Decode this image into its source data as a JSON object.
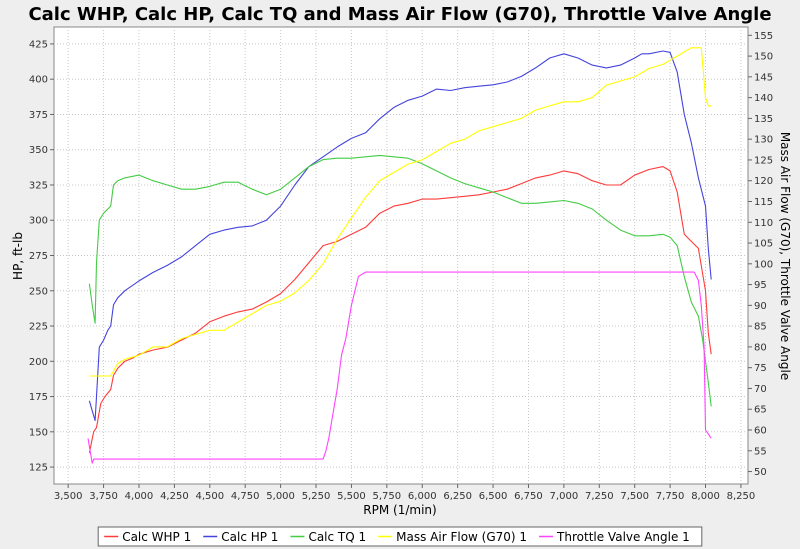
{
  "chart_data": {
    "type": "line",
    "title": "Calc WHP, Calc HP, Calc TQ and Mass Air Flow (G70), Throttle Valve Angle",
    "xlabel": "RPM (1/min)",
    "ylabel_left": "HP, ft-lb",
    "ylabel_right": "Mass Air Flow (G70), Throttle Valve Angle",
    "xlim": [
      3400,
      8300
    ],
    "ylim_left": [
      113,
      437
    ],
    "ylim_right": [
      47,
      157
    ],
    "x_ticks": [
      "3,500",
      "3,750",
      "4,000",
      "4,250",
      "4,500",
      "4,750",
      "5,000",
      "5,250",
      "5,500",
      "5,750",
      "6,000",
      "6,250",
      "6,500",
      "6,750",
      "7,000",
      "7,250",
      "7,500",
      "7,750",
      "8,000",
      "8,250"
    ],
    "y_left_ticks": [
      "125",
      "150",
      "175",
      "200",
      "225",
      "250",
      "275",
      "300",
      "325",
      "350",
      "375",
      "400",
      "425"
    ],
    "y_right_ticks": [
      "50",
      "55",
      "60",
      "65",
      "70",
      "75",
      "80",
      "85",
      "90",
      "95",
      "100",
      "105",
      "110",
      "115",
      "120",
      "125",
      "130",
      "135",
      "140",
      "145",
      "150",
      "155"
    ],
    "grid": true,
    "legend_position": "bottom",
    "series": [
      {
        "name": "Calc WHP 1",
        "color": "#ff3b3b",
        "axis": "left",
        "x": [
          3650,
          3670,
          3680,
          3700,
          3730,
          3760,
          3800,
          3820,
          3850,
          3900,
          3950,
          4000,
          4100,
          4200,
          4300,
          4400,
          4500,
          4600,
          4700,
          4800,
          4900,
          5000,
          5100,
          5200,
          5300,
          5400,
          5500,
          5600,
          5700,
          5800,
          5900,
          6000,
          6100,
          6200,
          6300,
          6400,
          6500,
          6600,
          6700,
          6800,
          6900,
          7000,
          7100,
          7200,
          7300,
          7400,
          7500,
          7600,
          7700,
          7750,
          7800,
          7850,
          7900,
          7950,
          8000,
          8020,
          8040
        ],
        "y": [
          135,
          145,
          150,
          153,
          170,
          175,
          180,
          190,
          195,
          200,
          202,
          205,
          208,
          210,
          215,
          220,
          228,
          232,
          235,
          237,
          242,
          248,
          258,
          270,
          282,
          285,
          290,
          295,
          305,
          310,
          312,
          315,
          315,
          316,
          317,
          318,
          320,
          322,
          326,
          330,
          332,
          335,
          333,
          328,
          325,
          325,
          332,
          336,
          338,
          335,
          320,
          290,
          285,
          280,
          250,
          220,
          205
        ]
      },
      {
        "name": "Calc HP 1",
        "color": "#4444dd",
        "axis": "left",
        "x": [
          3650,
          3670,
          3690,
          3700,
          3720,
          3750,
          3780,
          3800,
          3820,
          3850,
          3900,
          4000,
          4100,
          4200,
          4300,
          4400,
          4500,
          4600,
          4700,
          4800,
          4900,
          5000,
          5100,
          5200,
          5300,
          5400,
          5500,
          5600,
          5700,
          5800,
          5900,
          6000,
          6100,
          6200,
          6300,
          6400,
          6500,
          6600,
          6700,
          6800,
          6900,
          7000,
          7100,
          7200,
          7300,
          7400,
          7500,
          7550,
          7600,
          7700,
          7750,
          7800,
          7850,
          7900,
          7950,
          8000,
          8020,
          8040
        ],
        "y": [
          172,
          165,
          158,
          175,
          210,
          215,
          222,
          225,
          240,
          245,
          250,
          257,
          263,
          268,
          274,
          282,
          290,
          293,
          295,
          296,
          300,
          310,
          325,
          338,
          345,
          352,
          358,
          362,
          372,
          380,
          385,
          388,
          393,
          392,
          394,
          395,
          396,
          398,
          402,
          408,
          415,
          418,
          415,
          410,
          408,
          410,
          415,
          418,
          418,
          420,
          419,
          405,
          375,
          355,
          330,
          310,
          280,
          258
        ]
      },
      {
        "name": "Calc TQ 1",
        "color": "#44cc44",
        "axis": "left",
        "x": [
          3650,
          3670,
          3690,
          3700,
          3720,
          3750,
          3800,
          3820,
          3850,
          3900,
          4000,
          4100,
          4200,
          4300,
          4400,
          4500,
          4600,
          4700,
          4800,
          4900,
          5000,
          5100,
          5200,
          5300,
          5400,
          5500,
          5600,
          5700,
          5800,
          5900,
          6000,
          6100,
          6200,
          6300,
          6400,
          6500,
          6600,
          6700,
          6800,
          6900,
          7000,
          7100,
          7200,
          7300,
          7400,
          7500,
          7600,
          7700,
          7750,
          7800,
          7850,
          7900,
          7950,
          7980,
          8000,
          8020,
          8040
        ],
        "y": [
          255,
          240,
          227,
          270,
          300,
          305,
          310,
          325,
          328,
          330,
          332,
          328,
          325,
          322,
          322,
          324,
          327,
          327,
          322,
          318,
          322,
          330,
          338,
          343,
          344,
          344,
          345,
          346,
          345,
          344,
          340,
          335,
          330,
          326,
          323,
          320,
          316,
          312,
          312,
          313,
          314,
          312,
          308,
          300,
          293,
          289,
          289,
          290,
          288,
          282,
          260,
          242,
          232,
          215,
          200,
          185,
          168
        ]
      },
      {
        "name": "Mass Air Flow (G70) 1",
        "color": "#ffff00",
        "axis": "right",
        "x": [
          3650,
          3700,
          3750,
          3800,
          3850,
          3900,
          4000,
          4100,
          4200,
          4300,
          4400,
          4500,
          4600,
          4700,
          4800,
          4900,
          5000,
          5100,
          5200,
          5300,
          5400,
          5500,
          5600,
          5700,
          5800,
          5900,
          6000,
          6100,
          6200,
          6300,
          6400,
          6500,
          6600,
          6700,
          6800,
          6900,
          7000,
          7100,
          7200,
          7300,
          7400,
          7500,
          7600,
          7700,
          7750,
          7800,
          7850,
          7900,
          7950,
          7970,
          8000,
          8020,
          8040
        ],
        "y": [
          73,
          73,
          73,
          73,
          76,
          77,
          78,
          80,
          80,
          82,
          83,
          84,
          84,
          86,
          88,
          90,
          91,
          93,
          96,
          100,
          106,
          111,
          116,
          120,
          122,
          124,
          125,
          127,
          129,
          130,
          132,
          133,
          134,
          135,
          137,
          138,
          139,
          139,
          140,
          143,
          144,
          145,
          147,
          148,
          149,
          150,
          151,
          152,
          152,
          152,
          140,
          138,
          138
        ]
      },
      {
        "name": "Throttle Valve Angle 1",
        "color": "#ff44ff",
        "axis": "right",
        "x": [
          3640,
          3650,
          3660,
          3670,
          3680,
          3700,
          5300,
          5320,
          5340,
          5360,
          5400,
          5430,
          5460,
          5500,
          5550,
          5600,
          7900,
          7920,
          7950,
          7970,
          7990,
          8000,
          8020,
          8040
        ],
        "y": [
          58,
          56,
          54,
          52,
          53,
          53,
          53,
          55,
          58,
          62,
          70,
          78,
          82,
          90,
          97,
          98,
          98,
          98,
          96,
          90,
          80,
          60,
          59,
          58
        ]
      }
    ]
  }
}
